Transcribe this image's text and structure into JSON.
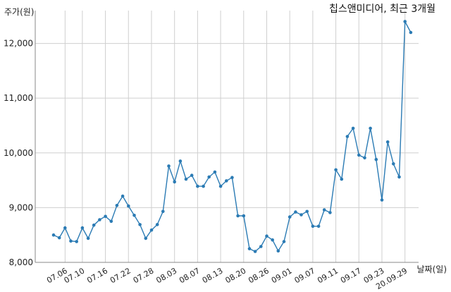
{
  "chart_data": {
    "type": "line",
    "title": "칩스앤미디어, 최근 3개월",
    "xlabel": "날짜(일)",
    "ylabel": "주가(원)",
    "ylim": [
      8000,
      12600
    ],
    "yticks": [
      8000,
      9000,
      10000,
      11000,
      12000
    ],
    "ytick_labels": [
      "8,000",
      "9,000",
      "10,000",
      "11,000",
      "12,000"
    ],
    "xtick_labels": [
      "07.06",
      "07.10",
      "07.16",
      "07.22",
      "07.28",
      "08.03",
      "08.07",
      "08.13",
      "08.20",
      "08.26",
      "09.01",
      "09.07",
      "09.11",
      "09.17",
      "09.23",
      "20.09.29"
    ],
    "xtick_index": [
      2,
      5,
      9,
      13,
      17,
      21,
      25,
      29,
      33,
      37,
      41,
      45,
      49,
      53,
      57,
      61
    ],
    "grid": true,
    "line_color": "#2b7bb4",
    "series": [
      {
        "values": [
          8500,
          8450,
          8630,
          8390,
          8380,
          8630,
          8440,
          8680,
          8780,
          8840,
          8750,
          9040,
          9210,
          9030,
          8860,
          8690,
          8440,
          8590,
          8690,
          8930,
          9760,
          9470,
          9850,
          9520,
          9590,
          9390,
          9390,
          9560,
          9650,
          9390,
          9490,
          9550,
          8850,
          8850,
          8250,
          8200,
          8290,
          8480,
          8410,
          8210,
          8380,
          8830,
          8920,
          8870,
          8930,
          8660,
          8660,
          8960,
          8910,
          9690,
          9520,
          10300,
          10450,
          9960,
          9910,
          10450,
          9880,
          9140,
          10200,
          9800,
          9560,
          12400,
          12200
        ]
      }
    ]
  }
}
